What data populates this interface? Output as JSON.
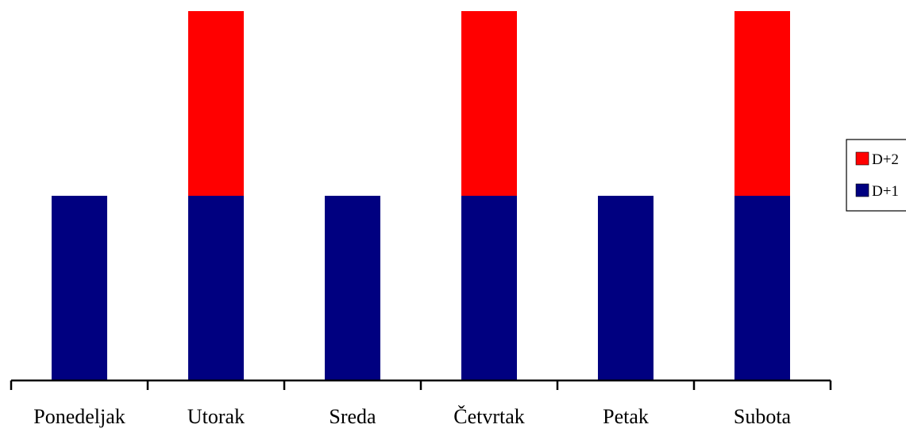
{
  "chart_data": {
    "type": "bar",
    "stacked": true,
    "categories": [
      "Ponedeljak",
      "Utorak",
      "Sreda",
      "Četvrtak",
      "Petak",
      "Subota"
    ],
    "series": [
      {
        "name": "D+1",
        "color": "#000080",
        "values": [
          1,
          1,
          1,
          1,
          1,
          1
        ]
      },
      {
        "name": "D+2",
        "color": "#ff0000",
        "values": [
          0,
          1,
          0,
          1,
          0,
          1
        ]
      }
    ],
    "title": "",
    "xlabel": "",
    "ylabel": "",
    "ylim": [
      0,
      2
    ],
    "y_axis_visible": false,
    "grid": false,
    "legend": {
      "placement": "right",
      "order": [
        "D+2",
        "D+1"
      ]
    }
  }
}
